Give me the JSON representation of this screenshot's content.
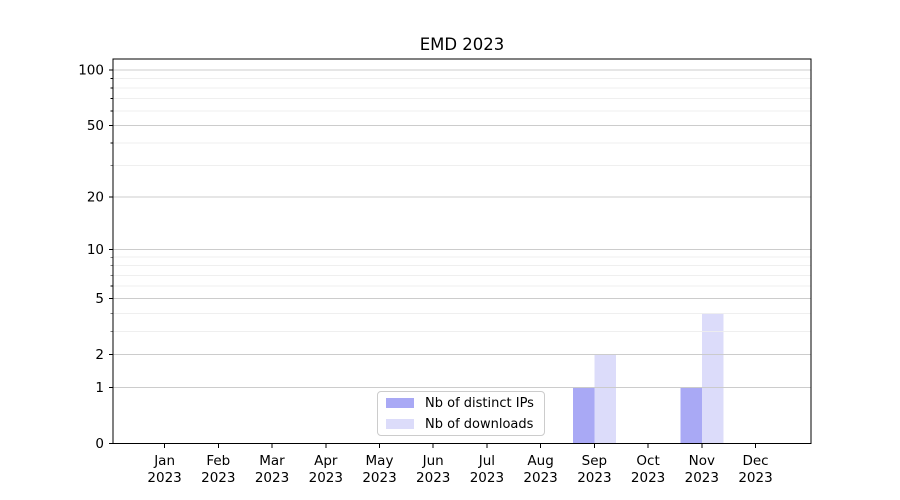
{
  "chart_data": {
    "type": "bar",
    "title": "EMD 2023",
    "categories": [
      "Jan",
      "Feb",
      "Mar",
      "Apr",
      "May",
      "Jun",
      "Jul",
      "Aug",
      "Sep",
      "Oct",
      "Nov",
      "Dec"
    ],
    "category_year": "2023",
    "series": [
      {
        "name": "Nb of distinct IPs",
        "color": "#a9a9f5",
        "values": [
          0,
          0,
          0,
          0,
          0,
          0,
          0,
          0,
          1,
          0,
          1,
          0
        ]
      },
      {
        "name": "Nb of downloads",
        "color": "#dcdcfa",
        "values": [
          0,
          0,
          0,
          0,
          0,
          0,
          0,
          0,
          2,
          0,
          4,
          0
        ]
      }
    ],
    "y_axis": {
      "scale": "log1p",
      "ticks": [
        0,
        1,
        2,
        5,
        10,
        20,
        50,
        100
      ],
      "minor_ticks": [
        3,
        4,
        6,
        7,
        8,
        9,
        30,
        40,
        60,
        70,
        80,
        90
      ],
      "ylim_top": 115
    },
    "x_axis": {
      "tick_label_format": "month over year"
    },
    "legend": {
      "position": "lower center-right",
      "border_color": "#cccccc"
    },
    "grid": {
      "major_color": "#c9c9c9",
      "minor_color": "#ededed",
      "grid_above_bars": true
    },
    "colors": {
      "axis": "#000000",
      "text": "#000000",
      "background": "#ffffff"
    }
  }
}
